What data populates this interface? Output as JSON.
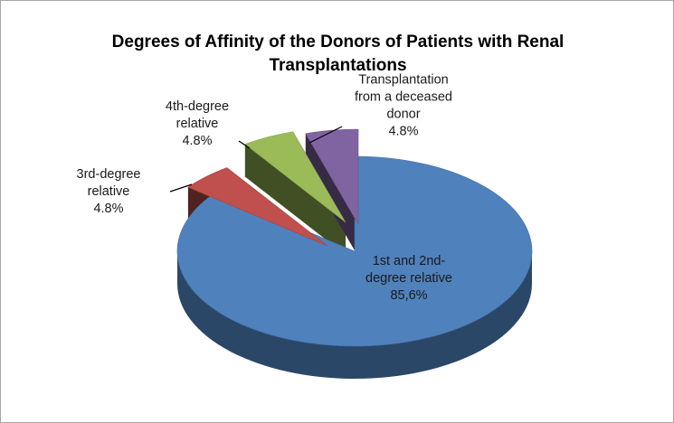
{
  "chart_data": {
    "type": "pie",
    "title": "Degrees of Affinity of the Donors of Patients with Renal\nTransplantations",
    "style": "3d-exploded",
    "legend": "none",
    "slices": [
      {
        "name": "1st and 2nd-degree relative",
        "value": 85.6,
        "label_lines": [
          "1st and 2nd-",
          "degree relative",
          "85,6%"
        ],
        "color": "#4f81bd"
      },
      {
        "name": "3rd-degree relative",
        "value": 4.8,
        "label_lines": [
          "3rd-degree",
          "relative",
          "4.8%"
        ],
        "color": "#c0504d"
      },
      {
        "name": "4th-degree relative",
        "value": 4.8,
        "label_lines": [
          "4th-degree",
          "relative",
          "4.8%"
        ],
        "color": "#9bbb59"
      },
      {
        "name": "Transplantation from a deceased donor",
        "value": 4.8,
        "label_lines": [
          "Transplantation",
          "from a deceased",
          "donor",
          "4.8%"
        ],
        "color": "#8064a2"
      }
    ]
  }
}
